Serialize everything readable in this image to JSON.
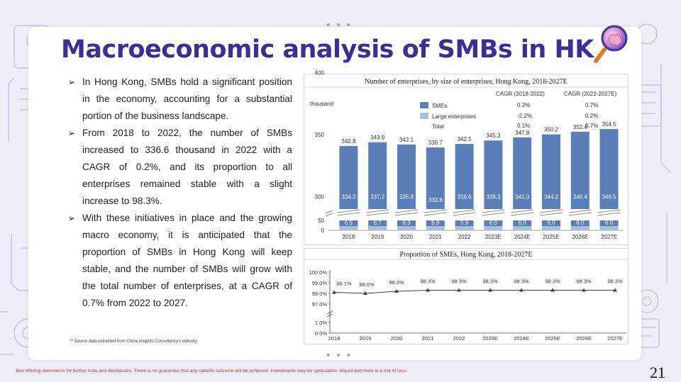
{
  "title": "Macroeconomic analysis of SMBs in HK",
  "bullets": [
    "In Hong Kong, SMBs hold a significant position in the economy, accounting for a substantial portion of the business landscape.",
    "From 2018 to 2022, the number of SMBs increased to 336.6 thousand in 2022 with a CAGR of 0.2%, and its proportion to all enterprises remained stable with a slight increase to 98.3%.",
    "With these initiatives in place and the growing macro economy, it is anticipated that the proportion of SMBs in Hong Kong will keep stable, and the number of SMBs will grow with the total number of enterprises, at a CAGR of 0.7% from 2022 to 2027."
  ],
  "source_note": "** Source data extracted from China Insights Consultancy's industry.",
  "footer": "See offering documents for further risks and disclosures. There is no guarantee that any specific outcome will be achieved. Investments may be speculative, illiquid and there is a risk of loss.",
  "page_number": "21",
  "icon": "magnifier-with-brain-icon",
  "colors": {
    "title": "#3b2f97",
    "sme_bar": "#5a7fb8",
    "large_bar": "#a9bfdc",
    "footer": "#c0392b"
  },
  "chart_data": [
    {
      "type": "bar",
      "stacked": true,
      "title": "Number of enterprises, by size of enterprises, Hong Kong, 2018-2027E",
      "ylabel": "thousand",
      "categories": [
        "2018",
        "2019",
        "2020",
        "2021",
        "2022",
        "2023E",
        "2024E",
        "2025E",
        "2026E",
        "2027E"
      ],
      "series": [
        {
          "name": "SMEs",
          "values": [
            334.3,
            337.2,
            335.8,
            333.8,
            336.6,
            339.3,
            341.8,
            344.2,
            346.4,
            348.5
          ]
        },
        {
          "name": "Large enterprises",
          "values": [
            6.5,
            6.7,
            6.3,
            5.9,
            5.9,
            6.0,
            6.0,
            6.0,
            6.0,
            6.0
          ]
        }
      ],
      "totals": [
        340.8,
        343.9,
        342.1,
        339.7,
        342.5,
        345.3,
        347.8,
        350.2,
        352.4,
        354.5
      ],
      "yticks": [
        "0",
        "50",
        "300",
        "350",
        "400"
      ],
      "axis_break": true,
      "legend_total_label": "Total",
      "cagr_headers": [
        "CAGR (2018-2022)",
        "CAGR (2022-2027E)"
      ],
      "cagr_rows": [
        {
          "label": "SMEs",
          "a": "0.2%",
          "b": "0.7%"
        },
        {
          "label": "Large enterprises",
          "a": "-2.2%",
          "b": "0.2%"
        },
        {
          "label": "Total",
          "a": "0.1%",
          "b": "0.7%"
        }
      ]
    },
    {
      "type": "line",
      "title": "Proportion of SMEs, Hong Kong, 2018-2027E",
      "categories": [
        "2018",
        "2019",
        "2020",
        "2021",
        "2022",
        "2023E",
        "2024E",
        "2025E",
        "2026E",
        "2027E"
      ],
      "series": [
        {
          "values": [
            98.1,
            98.0,
            98.2,
            98.3,
            98.3,
            98.3,
            98.3,
            98.3,
            98.3,
            98.3
          ]
        }
      ],
      "labels": [
        "98.1%",
        "98.0%",
        "98.2%",
        "98.3%",
        "98.3%",
        "98.3%",
        "98.3%",
        "98.3%",
        "98.3%",
        "98.3%"
      ],
      "yticks": [
        "0.0%",
        "1.0%",
        "97.0%",
        "98.0%",
        "99.0%",
        "100.0%"
      ],
      "axis_break": true
    }
  ]
}
